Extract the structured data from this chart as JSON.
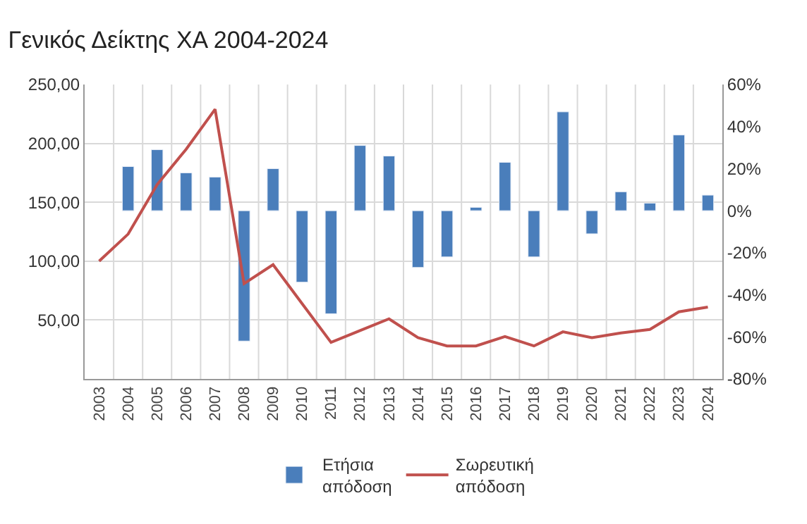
{
  "chart_data": {
    "type": "bar",
    "title": "Γενικός Δείκτης ΧΑ 2004-2024",
    "categories": [
      "2003",
      "2004",
      "2005",
      "2006",
      "2007",
      "2008",
      "2009",
      "2010",
      "2011",
      "2012",
      "2013",
      "2014",
      "2015",
      "2016",
      "2017",
      "2018",
      "2019",
      "2020",
      "2021",
      "2022",
      "2023",
      "2024"
    ],
    "series": [
      {
        "name": "Ετήσια απόδοση",
        "axis": "y2",
        "color": "#4a7ebb",
        "values": [
          null,
          21,
          29,
          18,
          16,
          -62,
          20,
          -34,
          -49,
          31,
          26,
          -27,
          -22,
          1.6,
          23,
          -22,
          47,
          -11,
          9,
          3.6,
          36,
          7.4
        ]
      },
      {
        "name": "Σωρευτική απόδοση",
        "type": "line",
        "color": "#c0504d",
        "values": [
          100,
          123,
          165,
          195,
          229,
          81,
          97,
          64,
          31,
          41,
          51,
          35,
          28,
          28,
          36,
          28,
          40,
          35,
          39,
          42,
          57,
          61
        ]
      }
    ],
    "ylim": [
      0,
      250
    ],
    "yticks": [
      {
        "value": 50,
        "label": "50,00"
      },
      {
        "value": 100,
        "label": "100,00"
      },
      {
        "value": 150,
        "label": "150,00"
      },
      {
        "value": 200,
        "label": "200,00"
      },
      {
        "value": 250,
        "label": "250,00"
      }
    ],
    "y2lim": [
      -80,
      60
    ],
    "y2ticks": [
      {
        "value": 60,
        "label": "60%"
      },
      {
        "value": 40,
        "label": "40%"
      },
      {
        "value": 20,
        "label": "20%"
      },
      {
        "value": 0,
        "label": "0%"
      },
      {
        "value": -20,
        "label": "-20%"
      },
      {
        "value": -40,
        "label": "-40%"
      },
      {
        "value": -60,
        "label": "-60%"
      },
      {
        "value": -80,
        "label": "-80%"
      }
    ],
    "grid": true,
    "legend": "bottom"
  }
}
